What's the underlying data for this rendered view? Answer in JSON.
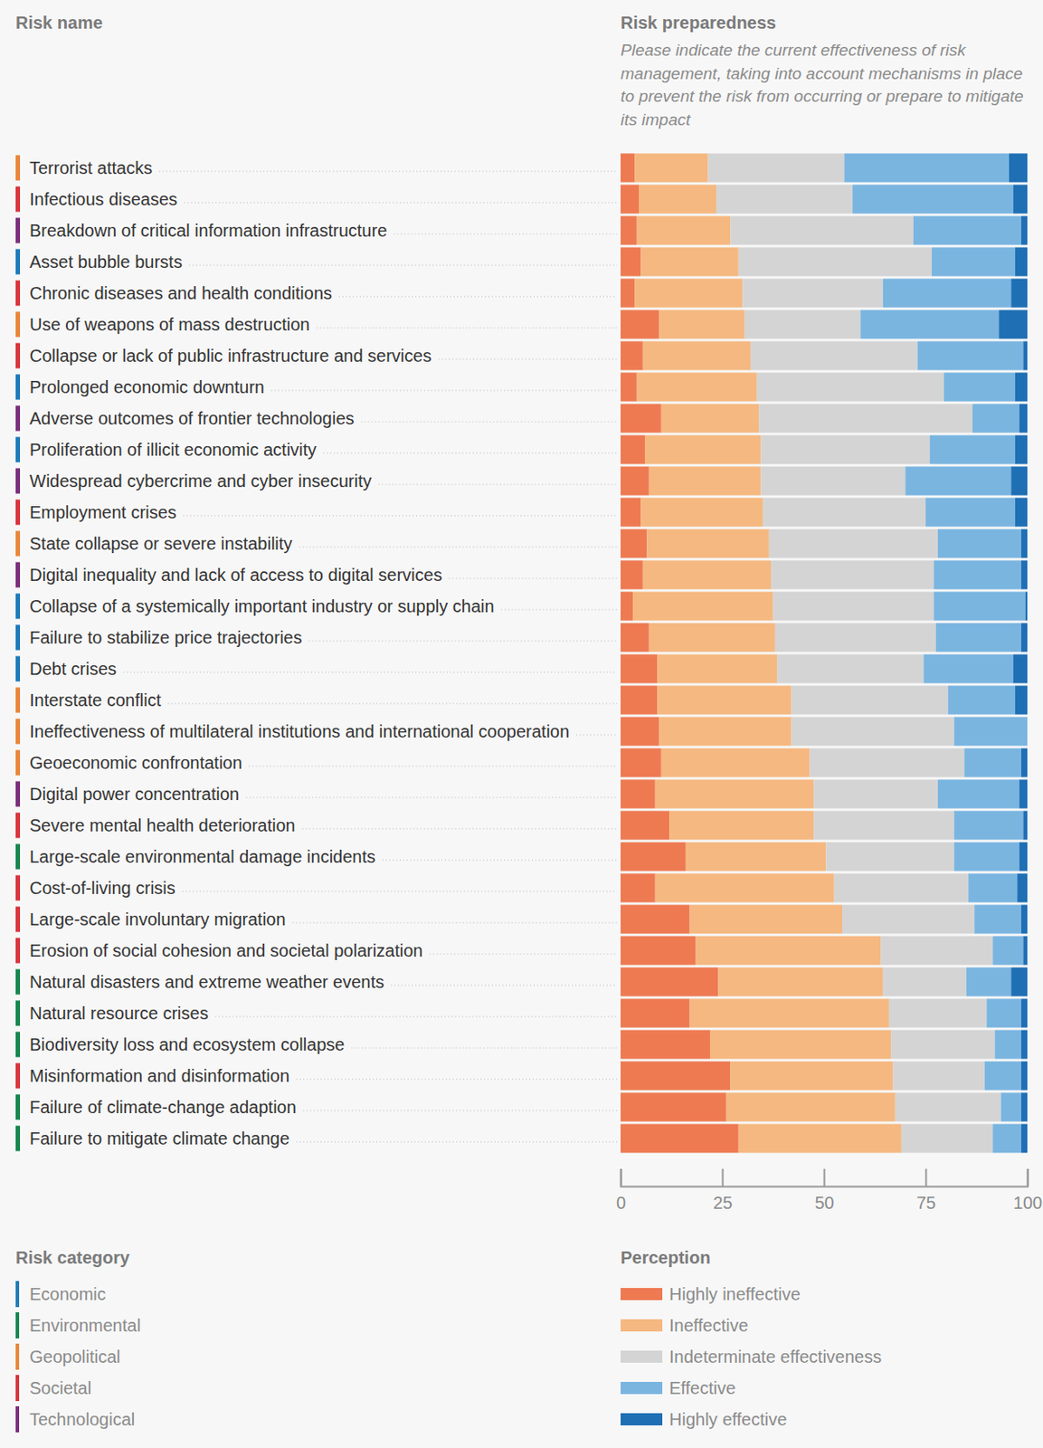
{
  "chart_data": {
    "type": "bar",
    "orientation": "horizontal",
    "stacked": true,
    "title": "Risk preparedness",
    "subtitle": "Please indicate the current effectiveness of risk management, taking into account mechanisms in place to prevent the risk from occurring or prepare to mitigate its impact",
    "ylabel": "Risk name",
    "legend_title": "Perception",
    "group_legend_title": "Risk category",
    "groups": [
      {
        "name": "Economic",
        "color": "#1f7ab8"
      },
      {
        "name": "Environmental",
        "color": "#17854e"
      },
      {
        "name": "Geopolitical",
        "color": "#e9863a"
      },
      {
        "name": "Societal",
        "color": "#d9343a"
      },
      {
        "name": "Technological",
        "color": "#7a2e7c"
      }
    ],
    "categories": [
      "Terrorist attacks",
      "Infectious diseases",
      "Breakdown of critical information infrastructure",
      "Asset bubble bursts",
      "Chronic diseases and health conditions",
      "Use of weapons of mass destruction",
      "Collapse or lack of public infrastructure and services",
      "Prolonged economic downturn",
      "Adverse outcomes of frontier technologies",
      "Proliferation of illicit economic activity",
      "Widespread cybercrime and cyber insecurity",
      "Employment crises",
      "State collapse or severe instability",
      "Digital inequality and lack of access to digital services",
      "Collapse of a systemically important industry or supply chain",
      "Failure to stabilize price trajectories",
      "Debt crises",
      "Interstate conflict",
      "Ineffectiveness of multilateral institutions and international cooperation",
      "Geoeconomic confrontation",
      "Digital power concentration",
      "Severe mental health deterioration",
      "Large-scale environmental damage incidents",
      "Cost-of-living crisis",
      "Large-scale involuntary migration",
      "Erosion of social cohesion and societal polarization",
      "Natural disasters and extreme weather events",
      "Natural resource crises",
      "Biodiversity loss and ecosystem collapse",
      "Misinformation and disinformation",
      "Failure of climate-change adaption",
      "Failure to mitigate climate change"
    ],
    "category_group": [
      "Geopolitical",
      "Societal",
      "Technological",
      "Economic",
      "Societal",
      "Geopolitical",
      "Societal",
      "Economic",
      "Technological",
      "Economic",
      "Technological",
      "Societal",
      "Geopolitical",
      "Technological",
      "Economic",
      "Economic",
      "Economic",
      "Geopolitical",
      "Geopolitical",
      "Geopolitical",
      "Technological",
      "Societal",
      "Environmental",
      "Societal",
      "Societal",
      "Societal",
      "Environmental",
      "Environmental",
      "Environmental",
      "Societal",
      "Environmental",
      "Environmental"
    ],
    "series": [
      {
        "name": "Highly ineffective",
        "color": "#ee7a52",
        "values": [
          3.5,
          4.5,
          4,
          5,
          3.5,
          9.5,
          5.5,
          4,
          10,
          6,
          7,
          5,
          6.5,
          5.5,
          3,
          7,
          9,
          9,
          9.5,
          10,
          8.5,
          12,
          16,
          8.5,
          17,
          18.5,
          24,
          17,
          22,
          27,
          26,
          29
        ]
      },
      {
        "name": "Ineffective",
        "color": "#f5b880",
        "values": [
          18,
          19,
          23,
          24,
          26.5,
          21,
          26.5,
          29.5,
          24,
          28.5,
          27.5,
          30,
          30,
          31.5,
          34.5,
          31,
          29.5,
          33,
          32.5,
          36.5,
          39,
          35.5,
          34.5,
          44,
          37.5,
          45.5,
          40.5,
          49,
          44.5,
          40,
          41.5,
          40
        ]
      },
      {
        "name": "Indeterminate effectiveness",
        "color": "#d4d4d4",
        "values": [
          33.5,
          33.5,
          45,
          47.5,
          34.5,
          28.5,
          41,
          46,
          52.5,
          41.5,
          35.5,
          40,
          41.5,
          40,
          39.5,
          39.5,
          36,
          38.5,
          40,
          38,
          30.5,
          34.5,
          31.5,
          33,
          32.5,
          27.5,
          20.5,
          24,
          25.5,
          22.5,
          26,
          22.5
        ]
      },
      {
        "name": "Effective",
        "color": "#7ab5e0",
        "values": [
          40.5,
          39.5,
          26.5,
          20.5,
          31.5,
          34,
          26,
          17.5,
          11.5,
          21,
          26,
          22,
          20.5,
          21.5,
          22.5,
          21,
          22,
          16.5,
          18,
          14,
          20,
          17,
          16,
          12,
          11.5,
          7.5,
          11,
          8.5,
          6.5,
          9,
          5,
          7
        ]
      },
      {
        "name": "Highly effective",
        "color": "#1f6fb5",
        "values": [
          4.5,
          3.5,
          1.5,
          3,
          4,
          7,
          1,
          3,
          2,
          3,
          4,
          3,
          1.5,
          1.5,
          0.5,
          1.5,
          3.5,
          3,
          0,
          1.5,
          2,
          1,
          2,
          2.5,
          1.5,
          1,
          4,
          1.5,
          1.5,
          1.5,
          1.5,
          1.5
        ]
      }
    ],
    "xlim": [
      0,
      100
    ],
    "xticks": [
      0,
      25,
      50,
      75,
      100
    ],
    "grid": false
  }
}
